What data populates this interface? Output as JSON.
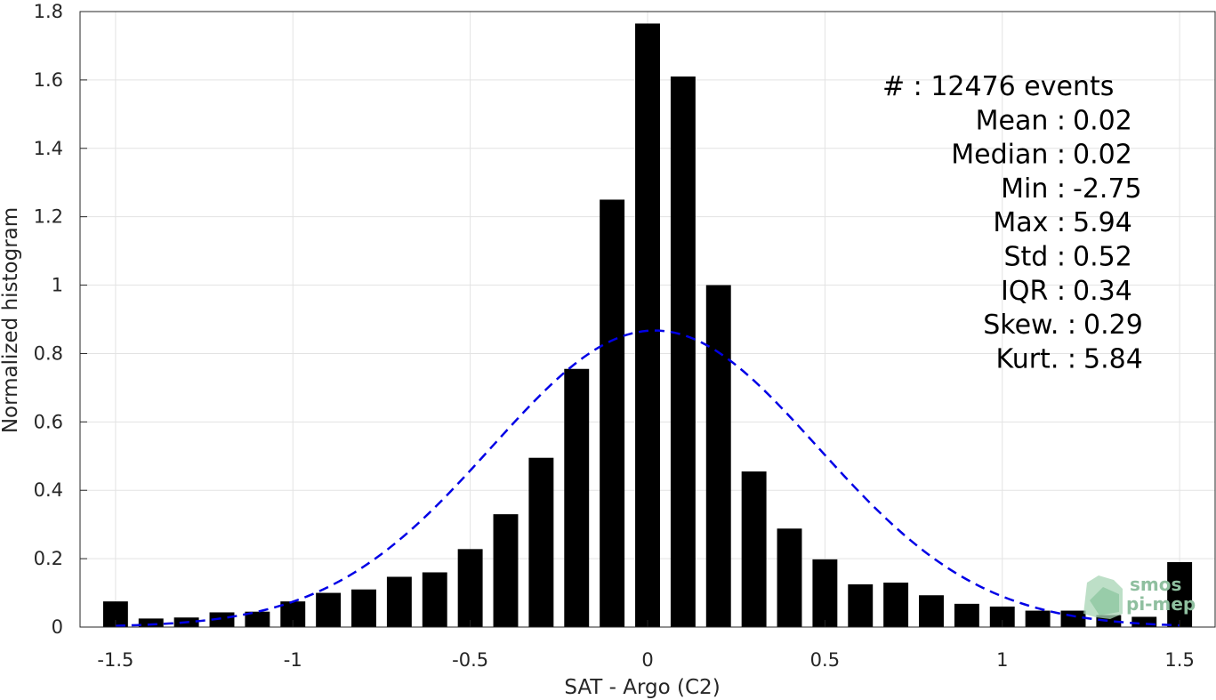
{
  "chart_data": {
    "type": "bar",
    "xlabel": "SAT - Argo (C2)",
    "ylabel": "Normalized histogram",
    "xlim": [
      -1.6,
      1.6
    ],
    "ylim": [
      0,
      1.8
    ],
    "xticks": [
      "-1.5",
      "-1",
      "-0.5",
      "0",
      "0.5",
      "1",
      "1.5"
    ],
    "yticks": [
      "0",
      "0.2",
      "0.4",
      "0.6",
      "0.8",
      "1",
      "1.2",
      "1.4",
      "1.6",
      "1.8"
    ],
    "grid": true,
    "bar_color": "#000000",
    "x": [
      -1.5,
      -1.4,
      -1.3,
      -1.2,
      -1.1,
      -1.0,
      -0.9,
      -0.8,
      -0.7,
      -0.6,
      -0.5,
      -0.4,
      -0.3,
      -0.2,
      -0.1,
      0.0,
      0.1,
      0.2,
      0.3,
      0.4,
      0.5,
      0.6,
      0.7,
      0.8,
      0.9,
      1.0,
      1.1,
      1.2,
      1.3,
      1.4,
      1.5
    ],
    "values": [
      0.075,
      0.025,
      0.028,
      0.043,
      0.045,
      0.075,
      0.1,
      0.11,
      0.147,
      0.16,
      0.228,
      0.33,
      0.495,
      0.755,
      1.25,
      1.765,
      1.61,
      1.0,
      0.455,
      0.288,
      0.198,
      0.125,
      0.13,
      0.093,
      0.068,
      0.06,
      0.048,
      0.048,
      0.035,
      0.03,
      0.19
    ],
    "fit_curve": {
      "type": "normal",
      "mean": 0.02,
      "std": 0.46,
      "color": "#0000e6",
      "style": "dashed"
    }
  },
  "stats": [
    {
      "label": "#  :",
      "value": "12476 events"
    },
    {
      "label": "Mean :",
      "value": "0.02"
    },
    {
      "label": "Median :",
      "value": "0.02"
    },
    {
      "label": "Min :",
      "value": "-2.75"
    },
    {
      "label": "Max :",
      "value": "5.94"
    },
    {
      "label": "Std :",
      "value": "0.52"
    },
    {
      "label": "IQR :",
      "value": "0.34"
    },
    {
      "label": "Skew. :",
      "value": "0.29"
    },
    {
      "label": "Kurt. :",
      "value": "5.84"
    }
  ],
  "logo": {
    "line1": "smos",
    "line2": "pi-mep"
  }
}
